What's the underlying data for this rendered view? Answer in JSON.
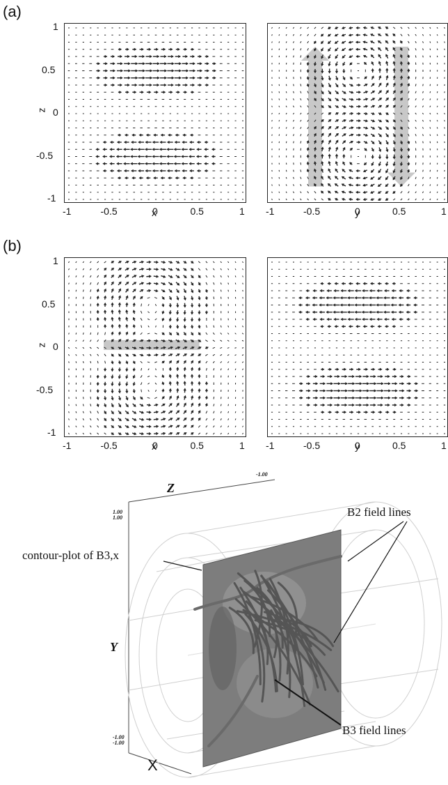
{
  "panels": {
    "a": "(a)",
    "b": "(b)"
  },
  "plots": [
    {
      "id": "a-left",
      "xlabel": "x",
      "ylabel": "z",
      "pattern": "a-left"
    },
    {
      "id": "a-right",
      "xlabel": "y",
      "ylabel": "",
      "pattern": "a-right"
    },
    {
      "id": "b-left",
      "xlabel": "x",
      "ylabel": "z",
      "pattern": "b-left"
    },
    {
      "id": "b-right",
      "xlabel": "y",
      "ylabel": "",
      "pattern": "b-right"
    }
  ],
  "x_ticks": [
    "-1",
    "-0.5",
    "0",
    "0.5",
    "1"
  ],
  "y_ticks": [
    "1",
    "0.5",
    "0",
    "-0.5",
    "-1"
  ],
  "figure3d": {
    "axis_z": "Z",
    "axis_y": "Y",
    "axis_x": "X",
    "tick_top_right": "-1.00",
    "tick_top_left_a": "1.00",
    "tick_top_left_b": "1.00",
    "tick_bottom_a": "-1.00",
    "tick_bottom_b": "-1.00",
    "label_b2": "B2 field lines",
    "label_contour": "contour-plot of B3,x",
    "label_b3": "B3 field lines"
  },
  "colors": {
    "arrow": "#222222",
    "highlight": "#c8c8c8",
    "plane": "#7a7a7a"
  }
}
